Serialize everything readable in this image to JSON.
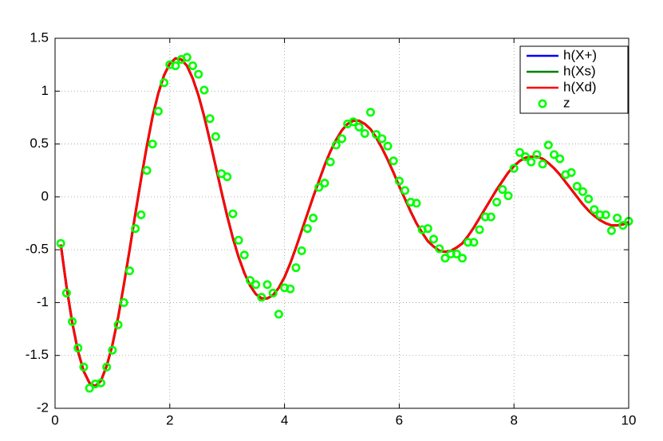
{
  "chart_data": {
    "type": "line",
    "x": [
      0.1,
      0.2,
      0.3,
      0.4,
      0.5,
      0.6,
      0.7,
      0.8,
      0.9,
      1.0,
      1.1,
      1.2,
      1.3,
      1.4,
      1.5,
      1.6,
      1.7,
      1.8,
      1.9,
      2.0,
      2.1,
      2.2,
      2.3,
      2.4,
      2.5,
      2.6,
      2.7,
      2.8,
      2.9,
      3.0,
      3.1,
      3.2,
      3.3,
      3.4,
      3.5,
      3.6,
      3.7,
      3.8,
      3.9,
      4.0,
      4.1,
      4.2,
      4.3,
      4.4,
      4.5,
      4.6,
      4.7,
      4.8,
      4.9,
      5.0,
      5.1,
      5.2,
      5.3,
      5.4,
      5.5,
      5.6,
      5.7,
      5.8,
      5.9,
      6.0,
      6.1,
      6.2,
      6.3,
      6.4,
      6.5,
      6.6,
      6.7,
      6.8,
      6.9,
      7.0,
      7.1,
      7.2,
      7.3,
      7.4,
      7.5,
      7.6,
      7.7,
      7.8,
      7.9,
      8.0,
      8.1,
      8.2,
      8.3,
      8.4,
      8.5,
      8.6,
      8.7,
      8.8,
      8.9,
      9.0,
      9.1,
      9.2,
      9.3,
      9.4,
      9.5,
      9.6,
      9.7,
      9.8,
      9.9,
      10.0
    ],
    "series": [
      {
        "name": "h(X+)",
        "color": "#0000ff",
        "mode": "line",
        "values": [
          -0.45,
          -0.85,
          -1.19,
          -1.46,
          -1.65,
          -1.76,
          -1.79,
          -1.74,
          -1.6,
          -1.4,
          -1.14,
          -0.83,
          -0.5,
          -0.16,
          0.17,
          0.48,
          0.76,
          0.98,
          1.15,
          1.26,
          1.31,
          1.3,
          1.24,
          1.12,
          0.96,
          0.76,
          0.53,
          0.29,
          0.05,
          -0.18,
          -0.39,
          -0.57,
          -0.72,
          -0.84,
          -0.92,
          -0.96,
          -0.96,
          -0.93,
          -0.86,
          -0.76,
          -0.63,
          -0.48,
          -0.32,
          -0.16,
          0.0,
          0.15,
          0.3,
          0.43,
          0.54,
          0.63,
          0.69,
          0.72,
          0.72,
          0.69,
          0.64,
          0.56,
          0.46,
          0.35,
          0.23,
          0.1,
          -0.02,
          -0.14,
          -0.25,
          -0.34,
          -0.42,
          -0.47,
          -0.51,
          -0.52,
          -0.51,
          -0.48,
          -0.44,
          -0.37,
          -0.29,
          -0.2,
          -0.11,
          -0.02,
          0.07,
          0.15,
          0.23,
          0.29,
          0.34,
          0.37,
          0.38,
          0.38,
          0.36,
          0.32,
          0.27,
          0.21,
          0.14,
          0.07,
          0.0,
          -0.07,
          -0.13,
          -0.18,
          -0.22,
          -0.25,
          -0.27,
          -0.27,
          -0.26,
          -0.24
        ]
      },
      {
        "name": "h(Xs)",
        "color": "#008000",
        "mode": "line",
        "values": [
          -0.45,
          -0.85,
          -1.19,
          -1.46,
          -1.65,
          -1.76,
          -1.79,
          -1.74,
          -1.6,
          -1.4,
          -1.14,
          -0.83,
          -0.5,
          -0.16,
          0.17,
          0.48,
          0.76,
          0.98,
          1.15,
          1.26,
          1.31,
          1.3,
          1.24,
          1.12,
          0.96,
          0.76,
          0.53,
          0.29,
          0.05,
          -0.18,
          -0.39,
          -0.57,
          -0.72,
          -0.84,
          -0.92,
          -0.96,
          -0.96,
          -0.93,
          -0.86,
          -0.76,
          -0.63,
          -0.48,
          -0.32,
          -0.16,
          0.0,
          0.15,
          0.3,
          0.43,
          0.54,
          0.63,
          0.69,
          0.72,
          0.72,
          0.69,
          0.64,
          0.56,
          0.46,
          0.35,
          0.23,
          0.1,
          -0.02,
          -0.14,
          -0.25,
          -0.34,
          -0.42,
          -0.47,
          -0.51,
          -0.52,
          -0.51,
          -0.48,
          -0.44,
          -0.37,
          -0.29,
          -0.2,
          -0.11,
          -0.02,
          0.07,
          0.15,
          0.23,
          0.29,
          0.34,
          0.37,
          0.38,
          0.38,
          0.36,
          0.32,
          0.27,
          0.21,
          0.14,
          0.07,
          0.0,
          -0.07,
          -0.13,
          -0.18,
          -0.22,
          -0.25,
          -0.27,
          -0.27,
          -0.26,
          -0.24
        ]
      },
      {
        "name": "h(Xd)",
        "color": "#ff0000",
        "mode": "line",
        "values": [
          -0.45,
          -0.85,
          -1.19,
          -1.46,
          -1.65,
          -1.76,
          -1.79,
          -1.74,
          -1.6,
          -1.4,
          -1.14,
          -0.83,
          -0.5,
          -0.16,
          0.17,
          0.48,
          0.76,
          0.98,
          1.15,
          1.26,
          1.31,
          1.3,
          1.24,
          1.12,
          0.96,
          0.76,
          0.53,
          0.29,
          0.05,
          -0.18,
          -0.39,
          -0.57,
          -0.72,
          -0.84,
          -0.92,
          -0.96,
          -0.96,
          -0.93,
          -0.86,
          -0.76,
          -0.63,
          -0.48,
          -0.32,
          -0.16,
          0.0,
          0.15,
          0.3,
          0.43,
          0.54,
          0.63,
          0.69,
          0.72,
          0.72,
          0.69,
          0.64,
          0.56,
          0.46,
          0.35,
          0.23,
          0.1,
          -0.02,
          -0.14,
          -0.25,
          -0.34,
          -0.42,
          -0.47,
          -0.51,
          -0.52,
          -0.51,
          -0.48,
          -0.44,
          -0.37,
          -0.29,
          -0.2,
          -0.11,
          -0.02,
          0.07,
          0.15,
          0.23,
          0.29,
          0.34,
          0.37,
          0.38,
          0.38,
          0.36,
          0.32,
          0.27,
          0.21,
          0.14,
          0.07,
          0.0,
          -0.07,
          -0.13,
          -0.18,
          -0.22,
          -0.25,
          -0.27,
          -0.27,
          -0.26,
          -0.24
        ]
      },
      {
        "name": "z",
        "color": "#00ff00",
        "mode": "marker",
        "values": [
          -0.44,
          -0.91,
          -1.18,
          -1.43,
          -1.61,
          -1.81,
          -1.77,
          -1.76,
          -1.61,
          -1.45,
          -1.21,
          -1.0,
          -0.7,
          -0.3,
          -0.17,
          0.25,
          0.5,
          0.81,
          1.08,
          1.25,
          1.24,
          1.3,
          1.32,
          1.24,
          1.16,
          1.01,
          0.74,
          0.57,
          0.22,
          0.19,
          -0.16,
          -0.41,
          -0.55,
          -0.79,
          -0.83,
          -0.95,
          -0.83,
          -0.91,
          -1.11,
          -0.86,
          -0.87,
          -0.67,
          -0.51,
          -0.3,
          -0.2,
          0.09,
          0.13,
          0.33,
          0.49,
          0.55,
          0.69,
          0.71,
          0.66,
          0.6,
          0.8,
          0.59,
          0.55,
          0.48,
          0.34,
          0.15,
          0.06,
          -0.05,
          -0.06,
          -0.31,
          -0.3,
          -0.4,
          -0.49,
          -0.58,
          -0.54,
          -0.54,
          -0.58,
          -0.43,
          -0.43,
          -0.31,
          -0.19,
          -0.19,
          -0.05,
          0.07,
          0.01,
          0.27,
          0.42,
          0.38,
          0.33,
          0.4,
          0.31,
          0.49,
          0.4,
          0.36,
          0.21,
          0.23,
          0.1,
          0.05,
          -0.02,
          -0.12,
          -0.17,
          -0.17,
          -0.32,
          -0.2,
          -0.27,
          -0.23
        ]
      }
    ],
    "xlim": [
      0,
      10
    ],
    "xticks": [
      0,
      2,
      4,
      6,
      8,
      10
    ],
    "ylim": [
      -2,
      1.5
    ],
    "yticks": [
      -2,
      -1.5,
      -1,
      -0.5,
      0,
      0.5,
      1,
      1.5
    ],
    "grid": true,
    "legend": "northeast"
  }
}
